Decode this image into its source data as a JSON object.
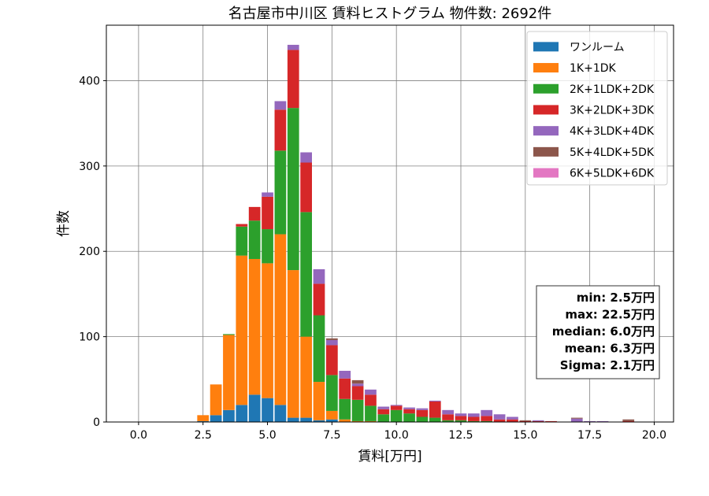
{
  "chart_data": {
    "type": "bar",
    "stacked": true,
    "title": "名古屋市中川区 賃料ヒストグラム 物件数: 2692件",
    "xlabel": "賃料[万円]",
    "ylabel": "件数",
    "xlim": [
      -1.25,
      20.75
    ],
    "ylim": [
      0,
      465
    ],
    "xticks": [
      "0.0",
      "2.5",
      "5.0",
      "7.5",
      "10.0",
      "12.5",
      "15.0",
      "17.5",
      "20.0"
    ],
    "yticks": [
      "0",
      "100",
      "200",
      "300",
      "400"
    ],
    "grid": true,
    "legend_position": "top-right",
    "bin_width": 0.5,
    "x": [
      2.5,
      3.0,
      3.5,
      4.0,
      4.5,
      5.0,
      5.5,
      6.0,
      6.5,
      7.0,
      7.5,
      8.0,
      8.5,
      9.0,
      9.5,
      10.0,
      10.5,
      11.0,
      11.5,
      12.0,
      12.5,
      13.0,
      13.5,
      14.0,
      14.5,
      15.0,
      15.5,
      16.0,
      16.5,
      17.0,
      17.5,
      18.0,
      18.5,
      19.0
    ],
    "series": [
      {
        "name": "ワンルーム",
        "color": "#1f77b4",
        "values": [
          1,
          8,
          14,
          20,
          32,
          28,
          20,
          5,
          5,
          2,
          3,
          0,
          0,
          0,
          0,
          0,
          0,
          0,
          0,
          0,
          0,
          0,
          0,
          0,
          0,
          0,
          0,
          0,
          0,
          0,
          0,
          0,
          0,
          0
        ]
      },
      {
        "name": "1K+1DK",
        "color": "#ff7f0e",
        "values": [
          7,
          36,
          88,
          175,
          159,
          158,
          200,
          173,
          95,
          45,
          10,
          3,
          1,
          1,
          0,
          0,
          0,
          0,
          0,
          0,
          0,
          0,
          0,
          0,
          0,
          0,
          0,
          0,
          0,
          0,
          0,
          0,
          0,
          0
        ]
      },
      {
        "name": "2K+1LDK+2DK",
        "color": "#2ca02c",
        "values": [
          0,
          0,
          1,
          34,
          45,
          40,
          98,
          190,
          146,
          78,
          42,
          24,
          25,
          18,
          9,
          14,
          10,
          6,
          5,
          2,
          2,
          1,
          1,
          0,
          0,
          0,
          0,
          0,
          0,
          0,
          0,
          0,
          0,
          0
        ]
      },
      {
        "name": "3K+2LDK+3DK",
        "color": "#d62728",
        "values": [
          0,
          0,
          0,
          3,
          16,
          38,
          48,
          68,
          58,
          37,
          35,
          24,
          16,
          13,
          6,
          5,
          5,
          8,
          19,
          7,
          5,
          5,
          6,
          3,
          3,
          1,
          1,
          1,
          0,
          0,
          0,
          0,
          0,
          1
        ]
      },
      {
        "name": "4K+3LDK+4DK",
        "color": "#9467bd",
        "values": [
          0,
          0,
          0,
          0,
          0,
          5,
          10,
          6,
          12,
          17,
          6,
          9,
          3,
          6,
          3,
          1,
          2,
          2,
          1,
          5,
          3,
          4,
          7,
          6,
          3,
          0,
          1,
          0,
          0,
          4,
          1,
          1,
          0,
          0
        ]
      },
      {
        "name": "5K+4LDK+5DK",
        "color": "#8c564b",
        "values": [
          0,
          0,
          0,
          0,
          0,
          0,
          0,
          0,
          0,
          0,
          2,
          0,
          4,
          0,
          0,
          0,
          0,
          0,
          0,
          0,
          0,
          0,
          0,
          0,
          0,
          1,
          0,
          0,
          0,
          1,
          0,
          0,
          0,
          2
        ]
      },
      {
        "name": "6K+5LDK+6DK",
        "color": "#e377c2",
        "values": [
          0,
          0,
          0,
          0,
          0,
          0,
          0,
          0,
          0,
          0,
          0,
          0,
          0,
          0,
          0,
          0,
          0,
          0,
          0,
          0,
          0,
          0,
          0,
          0,
          0,
          0,
          0,
          0,
          0,
          0,
          0,
          0,
          0,
          0
        ]
      }
    ],
    "stats_box": [
      "min: 2.5万円",
      "max: 22.5万円",
      "median: 6.0万円",
      "mean: 6.3万円",
      "Sigma: 2.1万円"
    ]
  }
}
